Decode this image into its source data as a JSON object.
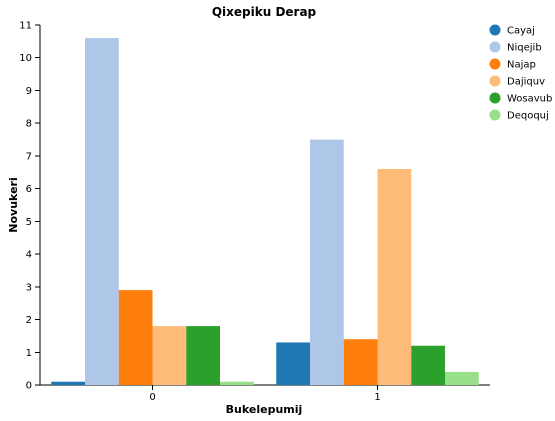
{
  "chart_data": {
    "type": "bar",
    "title": "Qixepiku Derap",
    "xlabel": "Bukelepumij",
    "ylabel": "Novukeri",
    "categories": [
      "0",
      "1"
    ],
    "ylim": [
      0,
      11
    ],
    "yticks": [
      "0",
      "1",
      "2",
      "3",
      "4",
      "5",
      "6",
      "7",
      "8",
      "9",
      "10",
      "11"
    ],
    "grid": false,
    "legend_position": "top-right",
    "series": [
      {
        "name": "Cayaj",
        "color": "#1f77b4",
        "values": [
          0.1,
          1.3
        ]
      },
      {
        "name": "Niqejib",
        "color": "#aec7e8",
        "values": [
          10.6,
          7.5
        ]
      },
      {
        "name": "Najap",
        "color": "#ff7f0e",
        "values": [
          2.9,
          1.4
        ]
      },
      {
        "name": "Dajiquv",
        "color": "#ffbb78",
        "values": [
          1.8,
          6.6
        ]
      },
      {
        "name": "Wosavub",
        "color": "#2ca02c",
        "values": [
          1.8,
          1.2
        ]
      },
      {
        "name": "Deqoquj",
        "color": "#98df8a",
        "values": [
          0.1,
          0.4
        ]
      }
    ]
  }
}
